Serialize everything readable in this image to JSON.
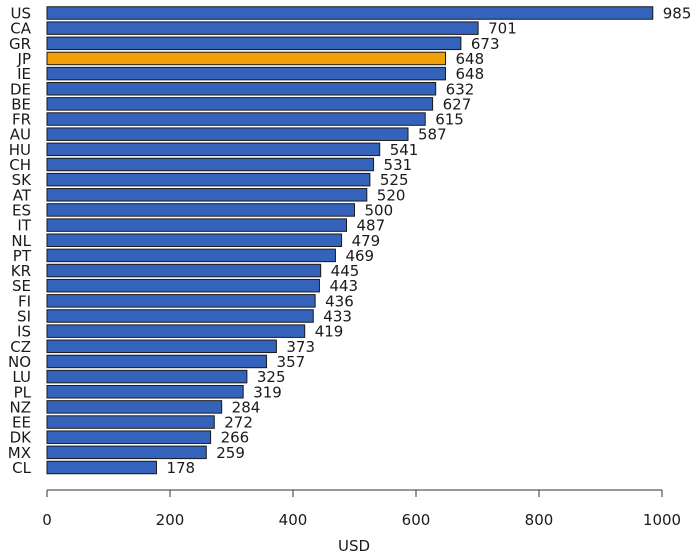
{
  "chart_data": {
    "type": "bar",
    "orientation": "horizontal",
    "categories": [
      "US",
      "CA",
      "GR",
      "JP",
      "IE",
      "DE",
      "BE",
      "FR",
      "AU",
      "HU",
      "CH",
      "SK",
      "AT",
      "ES",
      "IT",
      "NL",
      "PT",
      "KR",
      "SE",
      "FI",
      "SI",
      "IS",
      "CZ",
      "NO",
      "LU",
      "PL",
      "NZ",
      "EE",
      "DK",
      "MX",
      "CL"
    ],
    "values": [
      985,
      701,
      673,
      648,
      648,
      632,
      627,
      615,
      587,
      541,
      531,
      525,
      520,
      500,
      487,
      479,
      469,
      445,
      443,
      436,
      433,
      419,
      373,
      357,
      325,
      319,
      284,
      272,
      266,
      259,
      178
    ],
    "value_labels": [
      "985",
      "701",
      "673",
      "648",
      "648",
      "632",
      "627",
      "615",
      "587",
      "541",
      "531",
      "525",
      "520",
      "500",
      "487",
      "479",
      "469",
      "445",
      "443",
      "436",
      "433",
      "419",
      "373",
      "357",
      "325",
      "319",
      "284",
      "272",
      "266",
      "259",
      "178"
    ],
    "highlight_category": "JP",
    "colors": {
      "bar": "#3563bb",
      "highlight": "#f0a00a",
      "outline": "#1a1a1a"
    },
    "xlabel": "USD",
    "ylabel": "",
    "title": "",
    "xlim": [
      0,
      1000
    ],
    "xticks": [
      0,
      200,
      400,
      600,
      800,
      1000
    ],
    "xtick_labels": [
      "0",
      "200",
      "400",
      "600",
      "800",
      "1000"
    ],
    "grid": false,
    "legend": "none"
  }
}
